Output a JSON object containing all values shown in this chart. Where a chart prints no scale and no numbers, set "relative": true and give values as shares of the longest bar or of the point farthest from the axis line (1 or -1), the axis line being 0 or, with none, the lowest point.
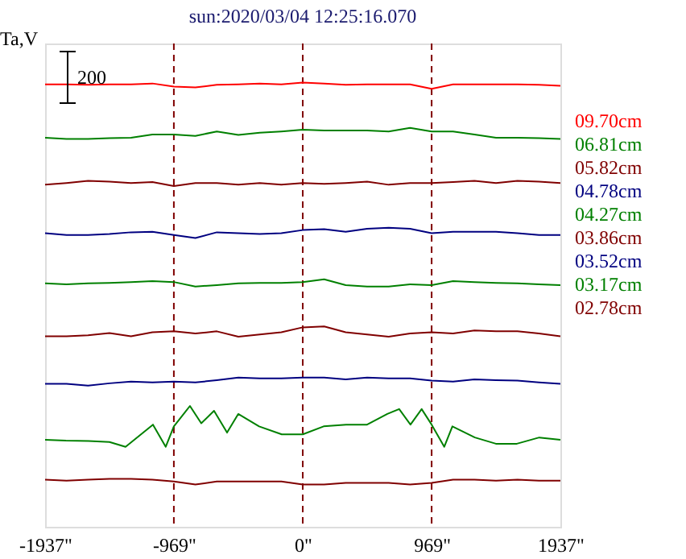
{
  "chart_data": {
    "type": "line",
    "title": "sun:2020/03/04 12:25:16.070",
    "ylabel": "Ta,V",
    "relative": true,
    "annotations": [
      "200"
    ],
    "legend": "right",
    "line_style": "solid",
    "marker": "none",
    "x": [
      -1937,
      -1776,
      -1614,
      -1453,
      -1291,
      -1130,
      -969,
      -807,
      -646,
      -484,
      -323,
      -161,
      0,
      161,
      323,
      484,
      646,
      807,
      969,
      1130,
      1291,
      1453,
      1614,
      1776,
      1937
    ],
    "xlim": [
      -1937,
      1937
    ],
    "xticks": [
      {
        "value": -1937,
        "label": "-1937\""
      },
      {
        "value": -969,
        "label": "-969\""
      },
      {
        "value": 0,
        "label": "0\""
      },
      {
        "value": 969,
        "label": "969\""
      },
      {
        "value": 1937,
        "label": "1937\""
      }
    ],
    "ref_lines": [
      {
        "axis": "x",
        "value": -969,
        "color": "#800000",
        "line_style": "dashed"
      },
      {
        "axis": "x",
        "value": 0,
        "color": "#800000",
        "line_style": "dashed"
      },
      {
        "axis": "x",
        "value": 969,
        "color": "#800000",
        "line_style": "dashed"
      }
    ],
    "series": [
      {
        "name": "09.70cm",
        "color": "#ff0000",
        "values": [
          0.996,
          0.996,
          0.995,
          0.996,
          0.996,
          0.998,
          0.991,
          0.989,
          0.995,
          0.996,
          0.998,
          0.996,
          1,
          0.998,
          0.995,
          0.996,
          0.996,
          0.996,
          0.986,
          0.996,
          0.996,
          0.996,
          0.996,
          0.995,
          0.993
        ]
      },
      {
        "name": "06.81cm",
        "color": "#008000",
        "values": [
          0.876,
          0.873,
          0.873,
          0.875,
          0.876,
          0.883,
          0.883,
          0.88,
          0.89,
          0.882,
          0.887,
          0.89,
          0.894,
          0.892,
          0.892,
          0.892,
          0.89,
          0.898,
          0.89,
          0.89,
          0.883,
          0.876,
          0.876,
          0.875,
          0.873
        ]
      },
      {
        "name": "05.82cm",
        "color": "#800000",
        "values": [
          0.77,
          0.774,
          0.779,
          0.777,
          0.774,
          0.776,
          0.767,
          0.774,
          0.774,
          0.77,
          0.774,
          0.77,
          0.774,
          0.772,
          0.774,
          0.777,
          0.77,
          0.774,
          0.774,
          0.776,
          0.779,
          0.774,
          0.779,
          0.777,
          0.774
        ]
      },
      {
        "name": "04.78cm",
        "color": "#000080",
        "values": [
          0.661,
          0.657,
          0.657,
          0.659,
          0.663,
          0.664,
          0.657,
          0.65,
          0.663,
          0.661,
          0.659,
          0.661,
          0.668,
          0.67,
          0.664,
          0.671,
          0.673,
          0.671,
          0.661,
          0.664,
          0.664,
          0.664,
          0.661,
          0.657,
          0.657
        ]
      },
      {
        "name": "04.27cm",
        "color": "#008000",
        "values": [
          0.548,
          0.546,
          0.548,
          0.549,
          0.551,
          0.553,
          0.551,
          0.541,
          0.544,
          0.548,
          0.549,
          0.549,
          0.551,
          0.557,
          0.544,
          0.541,
          0.541,
          0.546,
          0.544,
          0.553,
          0.551,
          0.549,
          0.548,
          0.546,
          0.544
        ]
      },
      {
        "name": "03.86cm",
        "color": "#800000",
        "values": [
          0.429,
          0.429,
          0.431,
          0.436,
          0.429,
          0.438,
          0.44,
          0.435,
          0.44,
          0.428,
          0.433,
          0.438,
          0.449,
          0.451,
          0.438,
          0.433,
          0.428,
          0.435,
          0.438,
          0.435,
          0.442,
          0.44,
          0.44,
          0.435,
          0.429
        ]
      },
      {
        "name": "03.52cm",
        "color": "#000080",
        "values": [
          0.322,
          0.322,
          0.318,
          0.323,
          0.327,
          0.325,
          0.327,
          0.325,
          0.33,
          0.336,
          0.334,
          0.334,
          0.336,
          0.336,
          0.332,
          0.336,
          0.334,
          0.334,
          0.329,
          0.327,
          0.332,
          0.33,
          0.329,
          0.325,
          0.322
        ]
      },
      {
        "name": "03.17cm",
        "color": "#008000",
        "x": [
          -1937,
          -1780,
          -1610,
          -1453,
          -1332,
          -1126,
          -1030,
          -969,
          -848,
          -763,
          -667,
          -569,
          -485,
          -328,
          -158,
          0,
          157,
          326,
          484,
          636,
          725,
          810,
          894,
          969,
          1064,
          1125,
          1294,
          1452,
          1610,
          1778,
          1937
        ],
        "values": [
          0.196,
          0.194,
          0.193,
          0.191,
          0.18,
          0.23,
          0.18,
          0.226,
          0.272,
          0.233,
          0.261,
          0.212,
          0.254,
          0.226,
          0.208,
          0.208,
          0.226,
          0.23,
          0.23,
          0.254,
          0.265,
          0.23,
          0.265,
          0.23,
          0.18,
          0.226,
          0.201,
          0.187,
          0.187,
          0.201,
          0.196
        ]
      },
      {
        "name": "02.78cm",
        "color": "#800000",
        "values": [
          0.106,
          0.104,
          0.106,
          0.108,
          0.108,
          0.106,
          0.102,
          0.095,
          0.102,
          0.102,
          0.102,
          0.102,
          0.095,
          0.095,
          0.099,
          0.099,
          0.099,
          0.095,
          0.099,
          0.106,
          0.106,
          0.104,
          0.106,
          0.104,
          0.104
        ]
      }
    ]
  }
}
